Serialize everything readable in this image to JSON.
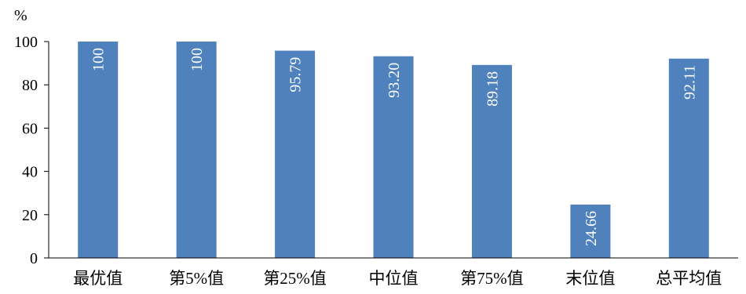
{
  "chart_data": {
    "type": "bar",
    "title": "",
    "xlabel": "",
    "ylabel": "%",
    "categories": [
      "最优值",
      "第5%值",
      "第25%值",
      "中位值",
      "第75%值",
      "末位值",
      "总平均值"
    ],
    "values": [
      100,
      100,
      95.79,
      93.2,
      89.18,
      24.66,
      92.11
    ],
    "data_labels": [
      "100",
      "100",
      "95.79",
      "93.20",
      "89.18",
      "24.66",
      "92.11"
    ],
    "ylim": [
      0,
      100
    ],
    "yticks": [
      "0",
      "20",
      "40",
      "60",
      "80",
      "100"
    ],
    "grid": false,
    "legend": "none",
    "bar_color": "#4f81bd",
    "axis_color": "#000000"
  }
}
